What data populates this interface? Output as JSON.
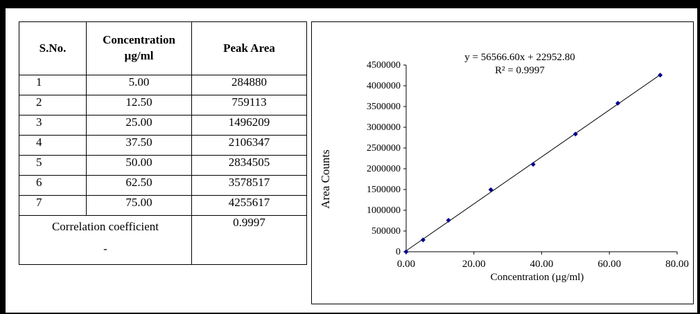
{
  "table": {
    "headers": {
      "sno": "S.No.",
      "conc_line1": "Concentration",
      "conc_line2": "µg/ml",
      "area": "Peak Area"
    },
    "rows": [
      {
        "sno": "1",
        "conc": "5.00",
        "area": "284880"
      },
      {
        "sno": "2",
        "conc": "12.50",
        "area": "759113"
      },
      {
        "sno": "3",
        "conc": "25.00",
        "area": "1496209"
      },
      {
        "sno": "4",
        "conc": "37.50",
        "area": "2106347"
      },
      {
        "sno": "5",
        "conc": "50.00",
        "area": "2834505"
      },
      {
        "sno": "6",
        "conc": "62.50",
        "area": "3578517"
      },
      {
        "sno": "7",
        "conc": "75.00",
        "area": "4255617"
      }
    ],
    "correlation": {
      "label": "Correlation coefficient",
      "dash": "-",
      "value": "0.9997"
    }
  },
  "chart_data": {
    "type": "scatter",
    "x": [
      0,
      5,
      12.5,
      25,
      37.5,
      50,
      62.5,
      75
    ],
    "y": [
      0,
      284880,
      759113,
      1496209,
      2106347,
      2834505,
      3578517,
      4255617
    ],
    "xlabel": "Concentration (µg/ml)",
    "ylabel": "Area Counts",
    "xlim": [
      0,
      80
    ],
    "ylim": [
      0,
      4500000
    ],
    "xticks": [
      "0.00",
      "20.00",
      "40.00",
      "60.00",
      "80.00"
    ],
    "yticks": [
      "0",
      "500000",
      "1000000",
      "1500000",
      "2000000",
      "2500000",
      "3000000",
      "3500000",
      "4000000",
      "4500000"
    ],
    "trendline": {
      "slope": 56566.6,
      "intercept": 22952.8,
      "x_range": [
        0,
        75
      ]
    },
    "equation": "y = 56566.60x + 22952.80",
    "r_squared": "R² = 0.9997",
    "grid": false,
    "marker_color": "#00008b",
    "line_color": "#000000"
  }
}
